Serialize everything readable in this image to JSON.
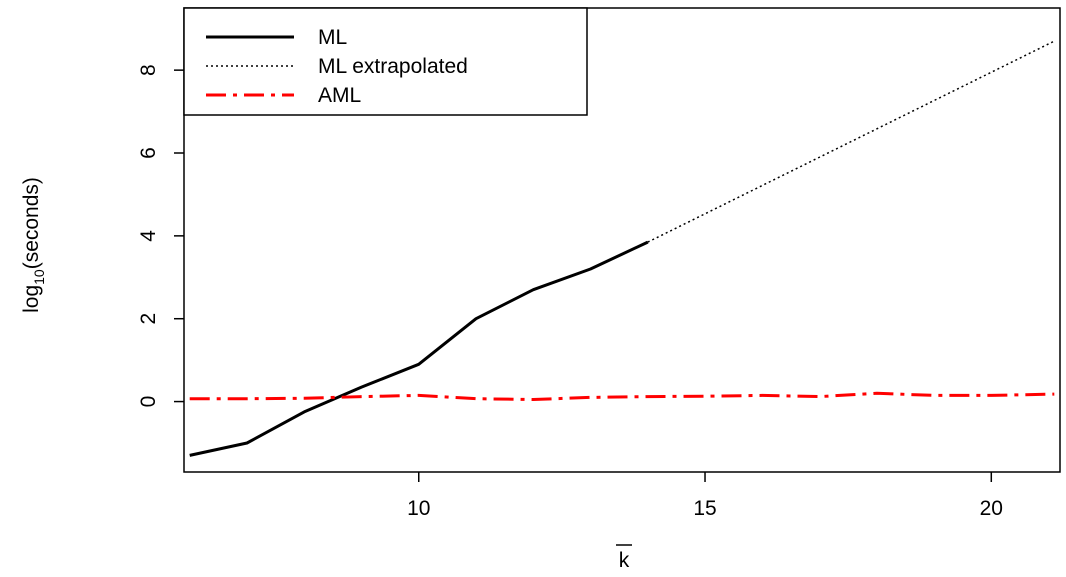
{
  "chart_data": {
    "type": "line",
    "title": "",
    "xlabel": "k",
    "xlabel_overline": true,
    "ylabel": {
      "base": "log",
      "subscript": "10",
      "rest": "(seconds)"
    },
    "xlim": [
      5.9,
      21.2
    ],
    "ylim": [
      -1.7,
      9.5
    ],
    "xticks": [
      10,
      15,
      20
    ],
    "yticks": [
      0,
      2,
      4,
      6,
      8
    ],
    "grid": false,
    "legend_position": "top-left",
    "series": [
      {
        "name": "ML",
        "style": "solid",
        "color": "#000000",
        "x": [
          6,
          7,
          8,
          9,
          10,
          11,
          12,
          13,
          14
        ],
        "y": [
          -1.3,
          -1.0,
          -0.25,
          0.35,
          0.9,
          2.0,
          2.7,
          3.2,
          3.85
        ]
      },
      {
        "name": "ML extrapolated",
        "style": "dotted",
        "color": "#000000",
        "x": [
          14,
          21.1
        ],
        "y": [
          3.85,
          8.7
        ]
      },
      {
        "name": "AML",
        "style": "dashdot",
        "color": "#ff0000",
        "x": [
          6,
          7,
          8,
          9,
          10,
          11,
          12,
          13,
          14,
          15,
          16,
          17,
          18,
          19,
          20,
          21.1
        ],
        "y": [
          0.07,
          0.07,
          0.08,
          0.12,
          0.15,
          0.07,
          0.05,
          0.1,
          0.12,
          0.13,
          0.15,
          0.12,
          0.2,
          0.15,
          0.15,
          0.18
        ]
      }
    ]
  }
}
